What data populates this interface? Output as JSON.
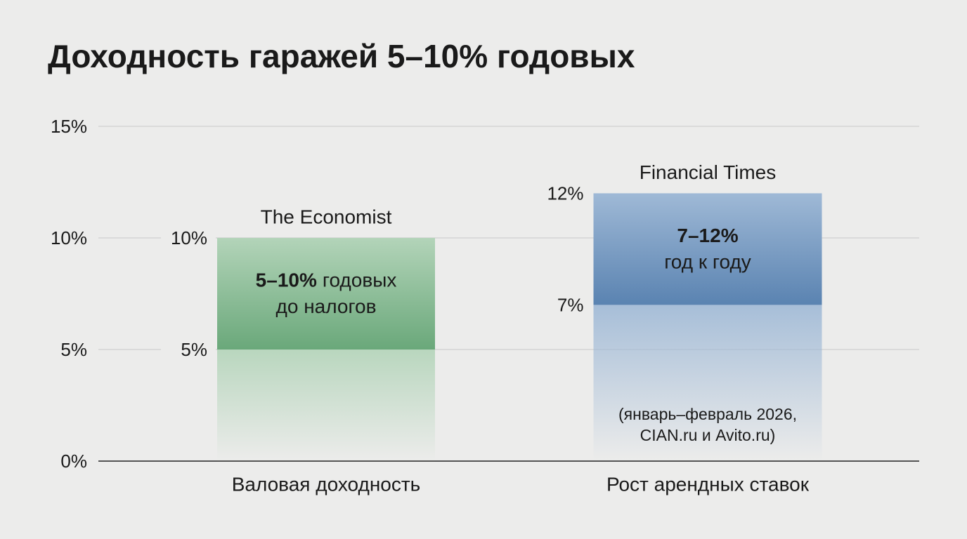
{
  "chart_data": {
    "type": "range_bar",
    "title": "Доходность гаражей 5–10% годовых",
    "categories": [
      "Валовая доходность",
      "Рост арендных ставок"
    ],
    "low": [
      5,
      7
    ],
    "high": [
      10,
      12
    ],
    "low_labels": [
      "5%",
      "7%"
    ],
    "high_labels": [
      "10%",
      "12%"
    ],
    "sources": [
      "The Economist",
      "Financial Times"
    ],
    "annotations": [
      {
        "bold": "5–10%",
        "text": "годовых",
        "line2": "до налогов"
      },
      {
        "bold": "7–12%",
        "line2": "год к году"
      }
    ],
    "note": [
      "(январь–февраль 2026,",
      "CIAN.ru и Avito.ru)"
    ],
    "colors": [
      "#6aa87a",
      "#5a83b1"
    ],
    "ylim": [
      0,
      15
    ],
    "yticks": [
      {
        "value": 0,
        "label": "0%"
      },
      {
        "value": 5,
        "label": "5%"
      },
      {
        "value": 10,
        "label": "10%"
      },
      {
        "value": 15,
        "label": "15%"
      }
    ],
    "grid": true
  }
}
